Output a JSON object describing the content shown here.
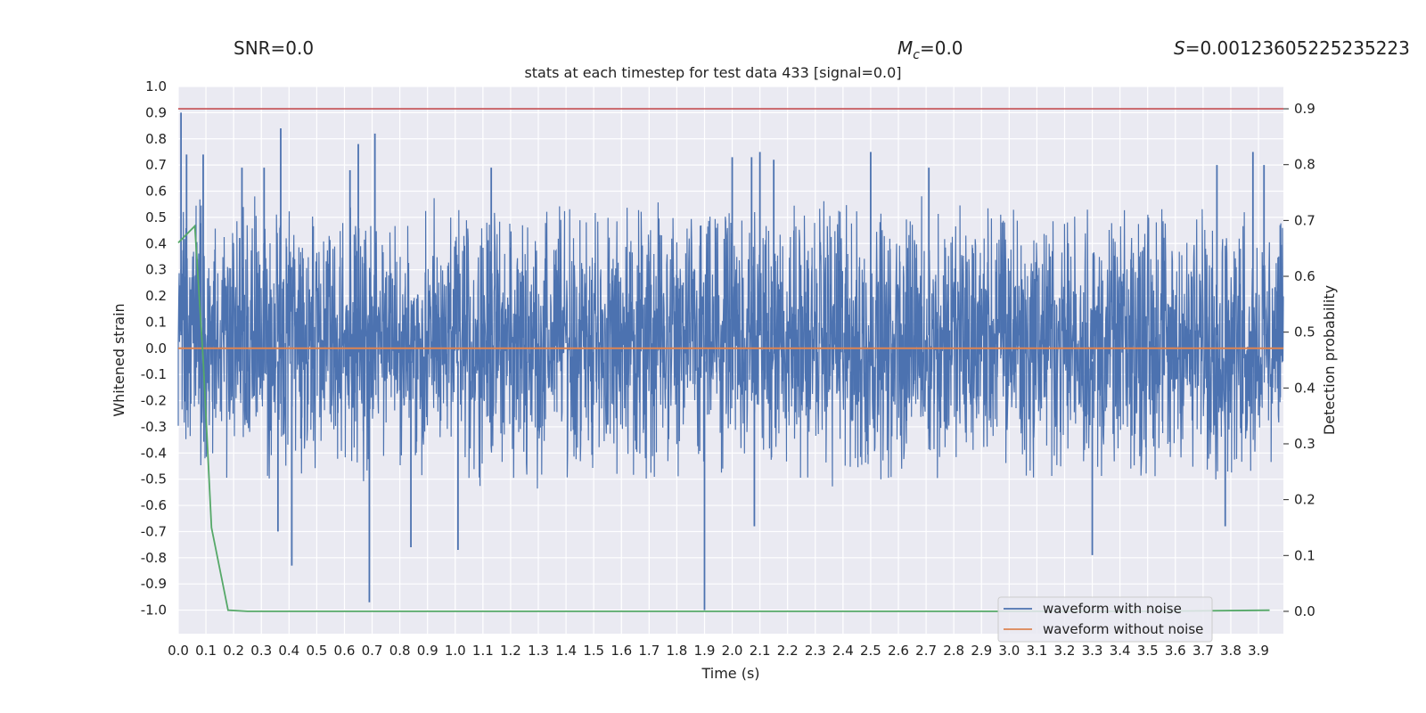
{
  "header": {
    "snr": "SNR=0.0",
    "mc": "=0.0",
    "s": "=0.00123605225235223"
  },
  "chart_data": {
    "type": "line",
    "title": "stats at each timestep for test data 433 [signal=0.0]",
    "xlabel": "Time (s)",
    "ylabel": "Whitened strain",
    "y2label": "Detection probability",
    "xlim": [
      0.0,
      3.99
    ],
    "ylim": [
      -1.09,
      1.0
    ],
    "y2lim": [
      -0.04,
      0.94
    ],
    "x_ticks": [
      "0.0",
      "0.1",
      "0.2",
      "0.3",
      "0.4",
      "0.5",
      "0.6",
      "0.7",
      "0.8",
      "0.9",
      "1.0",
      "1.1",
      "1.2",
      "1.3",
      "1.4",
      "1.5",
      "1.6",
      "1.7",
      "1.8",
      "1.9",
      "2.0",
      "2.1",
      "2.2",
      "2.3",
      "2.4",
      "2.5",
      "2.6",
      "2.7",
      "2.8",
      "2.9",
      "3.0",
      "3.1",
      "3.2",
      "3.3",
      "3.4",
      "3.5",
      "3.6",
      "3.7",
      "3.8",
      "3.9"
    ],
    "y_ticks": [
      "1.0",
      "0.9",
      "0.8",
      "0.7",
      "0.6",
      "0.5",
      "0.4",
      "0.3",
      "0.2",
      "0.1",
      "0.0",
      "-0.1",
      "-0.2",
      "-0.3",
      "-0.4",
      "-0.5",
      "-0.6",
      "-0.7",
      "-0.8",
      "-0.9",
      "-1.0"
    ],
    "y2_ticks": [
      "0.9",
      "0.8",
      "0.7",
      "0.6",
      "0.5",
      "0.4",
      "0.3",
      "0.2",
      "0.1",
      "0.0"
    ],
    "grid": true,
    "legend_position": "bottom-right",
    "threshold": {
      "value": 0.9,
      "axis": "right",
      "color": "#c44e52"
    },
    "series": [
      {
        "name": "waveform with noise",
        "color": "#4c72b0",
        "axis": "left",
        "kind": "noise",
        "x_range": [
          0.0,
          3.99
        ],
        "typical_range": [
          -0.45,
          0.5
        ],
        "peaks": [
          {
            "x": 0.01,
            "y": 0.9
          },
          {
            "x": 0.03,
            "y": 0.74
          },
          {
            "x": 0.09,
            "y": 0.74
          },
          {
            "x": 0.23,
            "y": 0.69
          },
          {
            "x": 0.31,
            "y": 0.69
          },
          {
            "x": 0.37,
            "y": 0.84
          },
          {
            "x": 0.41,
            "y": -0.83
          },
          {
            "x": 0.62,
            "y": 0.68
          },
          {
            "x": 0.65,
            "y": 0.78
          },
          {
            "x": 0.69,
            "y": -0.97
          },
          {
            "x": 0.71,
            "y": 0.82
          },
          {
            "x": 0.36,
            "y": -0.7
          },
          {
            "x": 0.84,
            "y": -0.76
          },
          {
            "x": 1.01,
            "y": -0.77
          },
          {
            "x": 1.13,
            "y": 0.69
          },
          {
            "x": 1.9,
            "y": -1.0
          },
          {
            "x": 2.0,
            "y": 0.73
          },
          {
            "x": 2.07,
            "y": 0.73
          },
          {
            "x": 2.08,
            "y": -0.68
          },
          {
            "x": 2.1,
            "y": 0.75
          },
          {
            "x": 2.15,
            "y": 0.72
          },
          {
            "x": 2.5,
            "y": 0.75
          },
          {
            "x": 2.71,
            "y": 0.69
          },
          {
            "x": 3.3,
            "y": -0.79
          },
          {
            "x": 3.75,
            "y": 0.7
          },
          {
            "x": 3.78,
            "y": -0.68
          },
          {
            "x": 3.88,
            "y": 0.75
          },
          {
            "x": 3.92,
            "y": 0.7
          }
        ]
      },
      {
        "name": "waveform without noise",
        "color": "#dd8452",
        "axis": "left",
        "x": [
          0.0,
          3.99
        ],
        "y": [
          0.0,
          0.0
        ]
      },
      {
        "name": "",
        "color": "#55a868",
        "axis": "right",
        "x": [
          0.0,
          0.06,
          0.09,
          0.12,
          0.18,
          0.25,
          3.5,
          3.94
        ],
        "y": [
          0.66,
          0.69,
          0.45,
          0.15,
          0.002,
          0.0,
          0.0,
          0.002
        ]
      }
    ]
  }
}
